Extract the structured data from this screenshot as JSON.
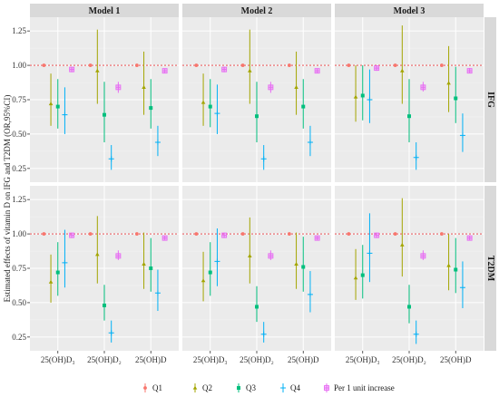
{
  "chart_data": {
    "type": "scatter",
    "title": "",
    "ylabel": "Estimated effects of vitamin D on IFG and T2DM (OR,95%CI)",
    "xlabel": "",
    "ylim": [
      0.15,
      1.35
    ],
    "yticks": [
      "0.25",
      "0.50",
      "0.75",
      "1.00",
      "1.25"
    ],
    "ytick_values": [
      0.25,
      0.5,
      0.75,
      1.0,
      1.25
    ],
    "reference_line": 1.0,
    "grid": true,
    "legend_position": "bottom",
    "columns": [
      "Model 1",
      "Model 2",
      "Model 3"
    ],
    "rows": [
      "IFG",
      "T2DM"
    ],
    "categories": [
      "25(OH)D₃",
      "25(OH)D₂",
      "25(OH)D"
    ],
    "series": [
      {
        "name": "Q1",
        "color": "#F8766D",
        "shape": "circle"
      },
      {
        "name": "Q2",
        "color": "#A3A500",
        "shape": "triangle"
      },
      {
        "name": "Q3",
        "color": "#00BF7D",
        "shape": "square"
      },
      {
        "name": "Q4",
        "color": "#00B0F6",
        "shape": "plus"
      },
      {
        "name": "Per 1 unit increase",
        "color": "#E76BF3",
        "shape": "boxplus"
      }
    ],
    "panels": [
      {
        "column": "Model 1",
        "row": "IFG",
        "points": [
          [
            1,
            0,
            1.0,
            1.0,
            1.0
          ],
          [
            1,
            1,
            0.72,
            0.56,
            0.94
          ],
          [
            1,
            2,
            0.7,
            0.54,
            0.9
          ],
          [
            1,
            3,
            0.64,
            0.5,
            0.84
          ],
          [
            1,
            4,
            0.97,
            0.95,
            0.99
          ],
          [
            2,
            0,
            1.0,
            1.0,
            1.0
          ],
          [
            2,
            1,
            0.96,
            0.72,
            1.26
          ],
          [
            2,
            2,
            0.64,
            0.44,
            0.88
          ],
          [
            2,
            3,
            0.32,
            0.24,
            0.42
          ],
          [
            2,
            4,
            0.84,
            0.8,
            0.88
          ],
          [
            3,
            0,
            1.0,
            1.0,
            1.0
          ],
          [
            3,
            1,
            0.84,
            0.64,
            1.1
          ],
          [
            3,
            2,
            0.69,
            0.54,
            0.9
          ],
          [
            3,
            3,
            0.44,
            0.34,
            0.56
          ],
          [
            3,
            4,
            0.96,
            0.95,
            0.97
          ]
        ]
      },
      {
        "column": "Model 2",
        "row": "IFG",
        "points": [
          [
            1,
            0,
            1.0,
            1.0,
            1.0
          ],
          [
            1,
            1,
            0.73,
            0.56,
            0.94
          ],
          [
            1,
            2,
            0.7,
            0.55,
            0.9
          ],
          [
            1,
            3,
            0.65,
            0.5,
            0.86
          ],
          [
            1,
            4,
            0.97,
            0.95,
            0.99
          ],
          [
            2,
            0,
            1.0,
            1.0,
            1.0
          ],
          [
            2,
            1,
            0.96,
            0.72,
            1.26
          ],
          [
            2,
            2,
            0.63,
            0.44,
            0.88
          ],
          [
            2,
            3,
            0.32,
            0.24,
            0.42
          ],
          [
            2,
            4,
            0.84,
            0.8,
            0.88
          ],
          [
            3,
            0,
            1.0,
            1.0,
            1.0
          ],
          [
            3,
            1,
            0.84,
            0.64,
            1.1
          ],
          [
            3,
            2,
            0.7,
            0.54,
            0.9
          ],
          [
            3,
            3,
            0.44,
            0.34,
            0.56
          ],
          [
            3,
            4,
            0.96,
            0.95,
            0.97
          ]
        ]
      },
      {
        "column": "Model 3",
        "row": "IFG",
        "points": [
          [
            1,
            0,
            1.0,
            1.0,
            1.0
          ],
          [
            1,
            1,
            0.77,
            0.59,
            1.0
          ],
          [
            1,
            2,
            0.78,
            0.6,
            1.0
          ],
          [
            1,
            3,
            0.75,
            0.58,
            0.97
          ],
          [
            1,
            4,
            0.98,
            0.96,
            1.0
          ],
          [
            2,
            0,
            1.0,
            1.0,
            1.0
          ],
          [
            2,
            1,
            0.96,
            0.72,
            1.29
          ],
          [
            2,
            2,
            0.63,
            0.44,
            0.9
          ],
          [
            2,
            3,
            0.33,
            0.24,
            0.44
          ],
          [
            2,
            4,
            0.84,
            0.81,
            0.88
          ],
          [
            3,
            0,
            1.0,
            1.0,
            1.0
          ],
          [
            3,
            1,
            0.87,
            0.66,
            1.14
          ],
          [
            3,
            2,
            0.76,
            0.58,
            0.99
          ],
          [
            3,
            3,
            0.49,
            0.37,
            0.65
          ],
          [
            3,
            4,
            0.96,
            0.95,
            0.98
          ]
        ]
      },
      {
        "column": "Model 1",
        "row": "T2DM",
        "points": [
          [
            1,
            0,
            1.0,
            1.0,
            1.0
          ],
          [
            1,
            1,
            0.65,
            0.5,
            0.85
          ],
          [
            1,
            2,
            0.72,
            0.55,
            0.94
          ],
          [
            1,
            3,
            0.79,
            0.61,
            1.03
          ],
          [
            1,
            4,
            0.99,
            0.97,
            1.01
          ],
          [
            2,
            0,
            1.0,
            1.0,
            1.0
          ],
          [
            2,
            1,
            0.85,
            0.64,
            1.13
          ],
          [
            2,
            2,
            0.48,
            0.37,
            0.63
          ],
          [
            2,
            3,
            0.28,
            0.21,
            0.37
          ],
          [
            2,
            4,
            0.84,
            0.81,
            0.88
          ],
          [
            3,
            0,
            1.0,
            1.0,
            1.0
          ],
          [
            3,
            1,
            0.78,
            0.6,
            1.01
          ],
          [
            3,
            2,
            0.75,
            0.58,
            0.97
          ],
          [
            3,
            3,
            0.57,
            0.44,
            0.74
          ],
          [
            3,
            4,
            0.97,
            0.96,
            0.98
          ]
        ]
      },
      {
        "column": "Model 2",
        "row": "T2DM",
        "points": [
          [
            1,
            0,
            1.0,
            1.0,
            1.0
          ],
          [
            1,
            1,
            0.66,
            0.51,
            0.87
          ],
          [
            1,
            2,
            0.72,
            0.55,
            0.94
          ],
          [
            1,
            3,
            0.8,
            0.62,
            1.04
          ],
          [
            1,
            4,
            0.99,
            0.97,
            1.01
          ],
          [
            2,
            0,
            1.0,
            1.0,
            1.0
          ],
          [
            2,
            1,
            0.84,
            0.64,
            1.12
          ],
          [
            2,
            2,
            0.47,
            0.36,
            0.62
          ],
          [
            2,
            3,
            0.27,
            0.21,
            0.36
          ],
          [
            2,
            4,
            0.84,
            0.81,
            0.88
          ],
          [
            3,
            0,
            1.0,
            1.0,
            1.0
          ],
          [
            3,
            1,
            0.78,
            0.6,
            1.01
          ],
          [
            3,
            2,
            0.76,
            0.58,
            0.98
          ],
          [
            3,
            3,
            0.56,
            0.43,
            0.73
          ],
          [
            3,
            4,
            0.97,
            0.96,
            0.98
          ]
        ]
      },
      {
        "column": "Model 3",
        "row": "T2DM",
        "points": [
          [
            1,
            0,
            1.0,
            1.0,
            1.0
          ],
          [
            1,
            1,
            0.68,
            0.52,
            0.89
          ],
          [
            1,
            2,
            0.7,
            0.53,
            0.92
          ],
          [
            1,
            3,
            0.86,
            0.65,
            1.15
          ],
          [
            1,
            4,
            0.99,
            0.97,
            1.01
          ],
          [
            2,
            0,
            1.0,
            1.0,
            1.0
          ],
          [
            2,
            1,
            0.92,
            0.69,
            1.26
          ],
          [
            2,
            2,
            0.47,
            0.35,
            0.63
          ],
          [
            2,
            3,
            0.27,
            0.2,
            0.37
          ],
          [
            2,
            4,
            0.84,
            0.81,
            0.88
          ],
          [
            3,
            0,
            1.0,
            1.0,
            1.0
          ],
          [
            3,
            1,
            0.77,
            0.59,
            1.0
          ],
          [
            3,
            2,
            0.74,
            0.57,
            0.97
          ],
          [
            3,
            3,
            0.61,
            0.46,
            0.8
          ],
          [
            3,
            4,
            0.97,
            0.96,
            0.98
          ]
        ]
      }
    ],
    "colors": {
      "panel_bg": "#EBEBEB",
      "strip_bg": "#D9D9D9",
      "grid_major": "#FFFFFF",
      "grid_minor": "#F4F4F4",
      "reference_line": "#E8383D"
    }
  }
}
